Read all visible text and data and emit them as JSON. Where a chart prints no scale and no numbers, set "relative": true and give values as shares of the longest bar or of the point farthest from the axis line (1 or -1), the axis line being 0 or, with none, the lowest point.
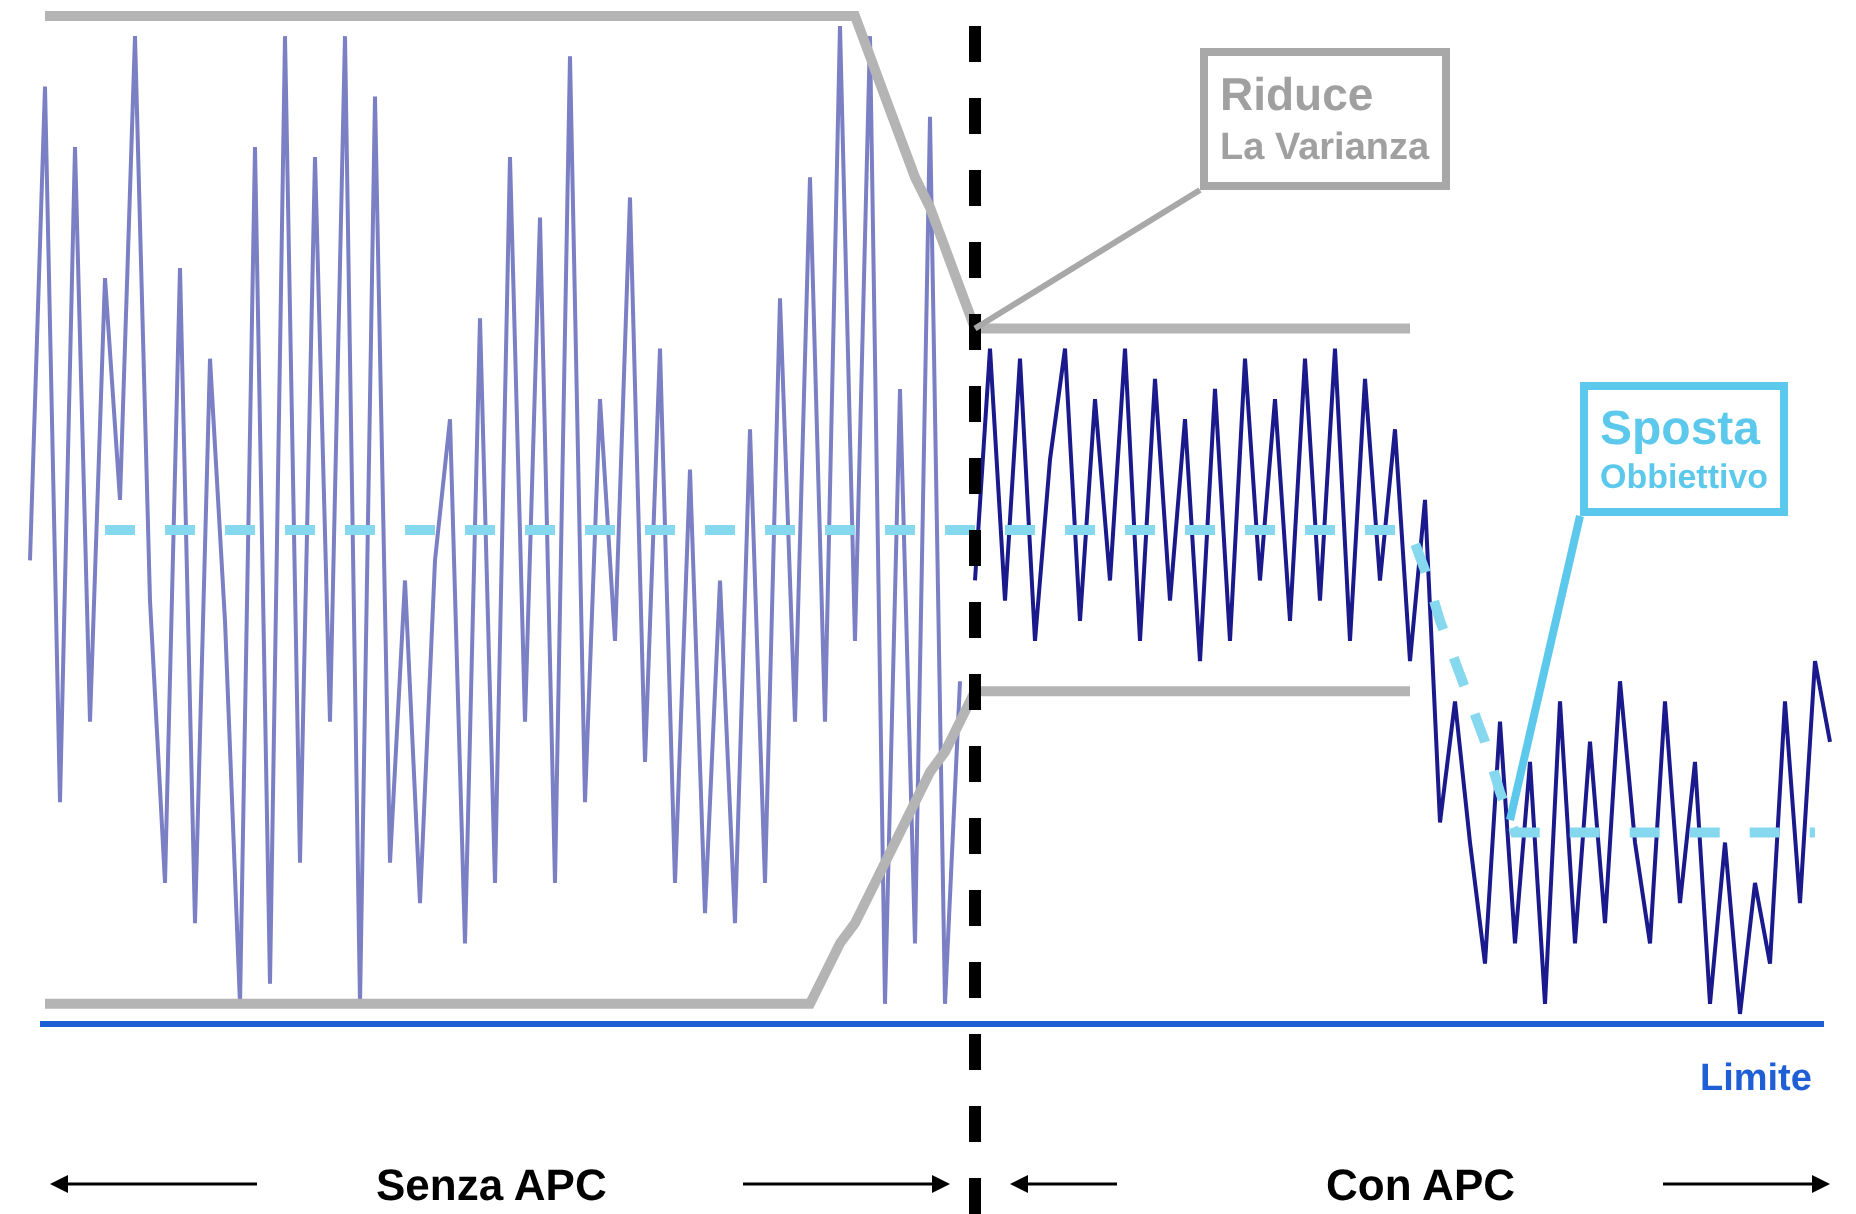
{
  "chart_data": {
    "type": "line",
    "relative": true,
    "legend": false,
    "grid": false,
    "tick_labels": false,
    "categories": [
      null,
      null,
      null,
      null,
      null,
      null,
      null,
      null,
      null,
      null,
      null,
      null,
      null,
      null,
      null,
      null,
      null,
      null,
      null,
      null,
      null,
      null,
      null,
      null,
      null,
      null,
      null,
      null,
      null,
      null,
      null,
      null,
      null,
      null,
      null,
      null,
      null,
      null,
      null,
      null,
      null,
      null,
      null,
      null,
      null,
      null,
      null,
      null,
      null,
      null,
      null,
      null,
      null,
      null,
      null,
      null,
      null,
      null,
      null,
      null,
      null,
      null,
      null,
      null,
      null,
      null,
      null,
      null,
      null,
      null,
      null,
      null,
      null,
      null,
      null,
      null,
      null,
      null,
      null,
      null,
      null,
      null,
      null,
      null,
      null,
      null,
      null,
      null,
      null,
      null,
      null,
      null,
      null,
      null,
      null,
      null,
      null,
      null,
      null,
      null,
      null,
      null,
      null,
      null,
      null,
      null,
      null,
      null,
      null,
      null,
      null,
      null,
      null,
      null,
      null,
      null,
      null,
      null,
      null,
      null,
      null
    ],
    "series": [
      {
        "color": "#7b7fc4",
        "values": [
          0.46,
          0.93,
          0.22,
          0.87,
          0.3,
          0.74,
          0.52,
          0.98,
          0.42,
          0.14,
          0.75,
          0.1,
          0.66,
          0.4,
          0.02,
          0.87,
          0.04,
          0.98,
          0.16,
          0.86,
          0.3,
          0.98,
          0.02,
          0.92,
          0.16,
          0.44,
          0.12,
          0.46,
          0.6,
          0.08,
          0.7,
          0.14,
          0.86,
          0.3,
          0.8,
          0.14,
          0.96,
          0.22,
          0.62,
          0.38,
          0.82,
          0.26,
          0.67,
          0.14,
          0.55,
          0.11,
          0.44,
          0.1,
          0.59,
          0.14,
          0.72,
          0.3,
          0.84,
          0.3,
          0.99,
          0.38,
          0.98,
          0.02,
          0.63,
          0.08,
          0.9,
          0.02,
          0.34,
          null,
          null,
          null,
          null,
          null,
          null,
          null,
          null,
          null,
          null,
          null,
          null,
          null,
          null,
          null,
          null,
          null,
          null,
          null,
          null,
          null,
          null,
          null,
          null,
          null,
          null,
          null,
          null,
          null,
          null,
          null,
          null,
          null,
          null,
          null,
          null,
          null,
          null,
          null,
          null,
          null,
          null,
          null,
          null,
          null,
          null,
          null,
          null,
          null,
          null,
          null,
          null,
          null,
          null,
          null,
          null,
          null,
          null
        ]
      },
      {
        "color": "#1a1a8c",
        "values": [
          null,
          null,
          null,
          null,
          null,
          null,
          null,
          null,
          null,
          null,
          null,
          null,
          null,
          null,
          null,
          null,
          null,
          null,
          null,
          null,
          null,
          null,
          null,
          null,
          null,
          null,
          null,
          null,
          null,
          null,
          null,
          null,
          null,
          null,
          null,
          null,
          null,
          null,
          null,
          null,
          null,
          null,
          null,
          null,
          null,
          null,
          null,
          null,
          null,
          null,
          null,
          null,
          null,
          null,
          null,
          null,
          null,
          null,
          null,
          null,
          null,
          null,
          null,
          0.44,
          0.67,
          0.42,
          0.66,
          0.38,
          0.56,
          0.67,
          0.4,
          0.62,
          0.44,
          0.67,
          0.38,
          0.64,
          0.42,
          0.6,
          0.36,
          0.63,
          0.38,
          0.66,
          0.44,
          0.62,
          0.4,
          0.66,
          0.42,
          0.67,
          0.38,
          0.64,
          0.44,
          0.59,
          0.36,
          0.52,
          0.2,
          0.32,
          0.18,
          0.06,
          0.3,
          0.08,
          0.26,
          0.02,
          0.32,
          0.08,
          0.28,
          0.1,
          0.34,
          0.18,
          0.08,
          0.32,
          0.12,
          0.26,
          0.02,
          0.18,
          0.01,
          0.14,
          0.06,
          0.32,
          0.12,
          0.36,
          0.28
        ]
      },
      {
        "color": "#b4b4b4",
        "values": [
          null,
          1.0,
          1.0,
          1.0,
          1.0,
          1.0,
          1.0,
          1.0,
          1.0,
          1.0,
          1.0,
          1.0,
          1.0,
          1.0,
          1.0,
          1.0,
          1.0,
          1.0,
          1.0,
          1.0,
          1.0,
          1.0,
          1.0,
          1.0,
          1.0,
          1.0,
          1.0,
          1.0,
          1.0,
          1.0,
          1.0,
          1.0,
          1.0,
          1.0,
          1.0,
          1.0,
          1.0,
          1.0,
          1.0,
          1.0,
          1.0,
          1.0,
          1.0,
          1.0,
          1.0,
          1.0,
          1.0,
          1.0,
          1.0,
          1.0,
          1.0,
          1.0,
          1.0,
          1.0,
          1.0,
          1.0,
          0.96,
          0.92,
          0.88,
          0.84,
          0.81,
          0.77,
          0.73,
          0.69,
          0.69,
          0.69,
          0.69,
          0.69,
          0.69,
          0.69,
          0.69,
          0.69,
          0.69,
          0.69,
          0.69,
          0.69,
          0.69,
          0.69,
          0.69,
          0.69,
          0.69,
          0.69,
          0.69,
          0.69,
          0.69,
          0.69,
          0.69,
          0.69,
          0.69,
          0.69,
          0.69,
          0.69,
          0.69,
          null,
          null,
          null,
          null,
          null,
          null,
          null,
          null,
          null,
          null,
          null,
          null,
          null,
          null,
          null,
          null,
          null,
          null,
          null,
          null,
          null,
          null,
          null,
          null,
          null,
          null,
          null,
          null
        ]
      },
      {
        "color": "#b4b4b4",
        "values": [
          null,
          0.02,
          0.02,
          0.02,
          0.02,
          0.02,
          0.02,
          0.02,
          0.02,
          0.02,
          0.02,
          0.02,
          0.02,
          0.02,
          0.02,
          0.02,
          0.02,
          0.02,
          0.02,
          0.02,
          0.02,
          0.02,
          0.02,
          0.02,
          0.02,
          0.02,
          0.02,
          0.02,
          0.02,
          0.02,
          0.02,
          0.02,
          0.02,
          0.02,
          0.02,
          0.02,
          0.02,
          0.02,
          0.02,
          0.02,
          0.02,
          0.02,
          0.02,
          0.02,
          0.02,
          0.02,
          0.02,
          0.02,
          0.02,
          0.02,
          0.02,
          0.02,
          0.02,
          0.05,
          0.08,
          0.1,
          0.13,
          0.16,
          0.19,
          0.22,
          0.25,
          0.27,
          0.3,
          0.33,
          0.33,
          0.33,
          0.33,
          0.33,
          0.33,
          0.33,
          0.33,
          0.33,
          0.33,
          0.33,
          0.33,
          0.33,
          0.33,
          0.33,
          0.33,
          0.33,
          0.33,
          0.33,
          0.33,
          0.33,
          0.33,
          0.33,
          0.33,
          0.33,
          0.33,
          0.33,
          0.33,
          0.33,
          0.33,
          null,
          null,
          null,
          null,
          null,
          null,
          null,
          null,
          null,
          null,
          null,
          null,
          null,
          null,
          null,
          null,
          null,
          null,
          null,
          null,
          null,
          null,
          null,
          null,
          null,
          null,
          null,
          null
        ]
      },
      {
        "color": "#86d8ee",
        "line_style": "dashed",
        "values": [
          null,
          null,
          null,
          null,
          null,
          0.49,
          0.49,
          0.49,
          0.49,
          0.49,
          0.49,
          0.49,
          0.49,
          0.49,
          0.49,
          0.49,
          0.49,
          0.49,
          0.49,
          0.49,
          0.49,
          0.49,
          0.49,
          0.49,
          0.49,
          0.49,
          0.49,
          0.49,
          0.49,
          0.49,
          0.49,
          0.49,
          0.49,
          0.49,
          0.49,
          0.49,
          0.49,
          0.49,
          0.49,
          0.49,
          0.49,
          0.49,
          0.49,
          0.49,
          0.49,
          0.49,
          0.49,
          0.49,
          0.49,
          0.49,
          0.49,
          0.49,
          0.49,
          0.49,
          0.49,
          0.49,
          0.49,
          0.49,
          0.49,
          0.49,
          0.49,
          0.49,
          0.49,
          0.49,
          0.49,
          0.49,
          0.49,
          0.49,
          0.49,
          0.49,
          0.49,
          0.49,
          0.49,
          0.49,
          0.49,
          0.49,
          0.49,
          0.49,
          0.49,
          0.49,
          0.49,
          0.49,
          0.49,
          0.49,
          0.49,
          0.49,
          0.49,
          0.49,
          0.49,
          0.49,
          0.49,
          0.49,
          0.49,
          0.45,
          0.4,
          0.36,
          0.32,
          0.28,
          0.23,
          0.19,
          0.19,
          0.19,
          0.19,
          0.19,
          0.19,
          0.19,
          0.19,
          0.19,
          0.19,
          0.19,
          0.19,
          0.19,
          0.19,
          0.19,
          0.19,
          0.19,
          0.19,
          0.19,
          0.19,
          0.19,
          null
        ]
      }
    ],
    "ref_lines": [
      {
        "axis": "y",
        "value": 0,
        "label": "Limite",
        "color": "#1f5fd6"
      }
    ],
    "annotations": [
      "Riduce La Varianza",
      "Sposta Obbiettivo",
      "Senza APC",
      "Con APC"
    ]
  }
}
